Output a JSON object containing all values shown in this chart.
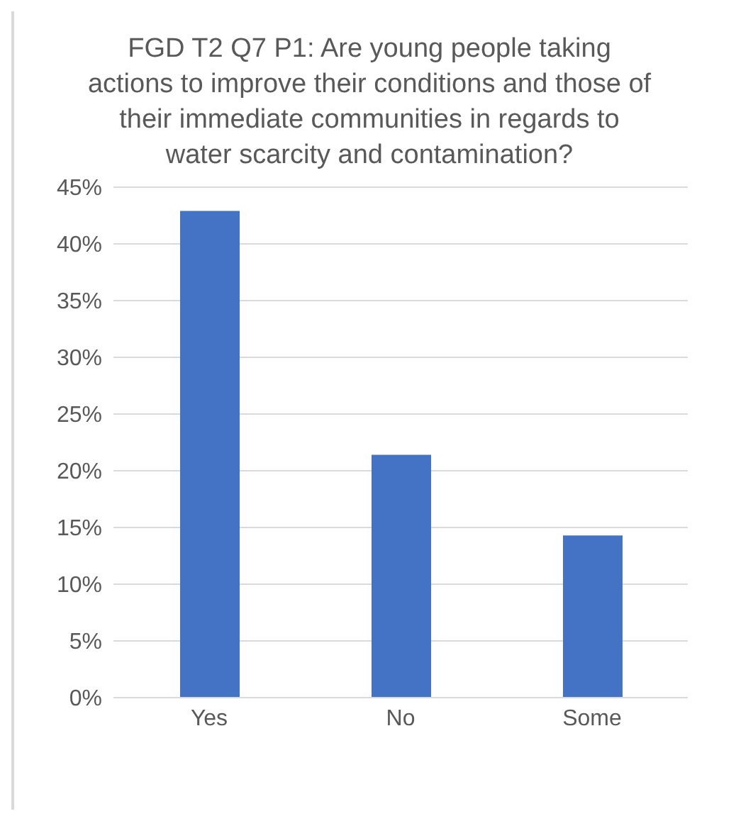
{
  "chart_data": {
    "type": "bar",
    "title": "FGD T2 Q7 P1: Are young people taking actions to improve their conditions and those of their immediate communities in regards to water scarcity and contamination?",
    "categories": [
      "Yes",
      "No",
      "Some"
    ],
    "values": [
      42.9,
      21.4,
      14.3
    ],
    "color": "#4472c4",
    "ylim": [
      0,
      45
    ],
    "yticks": [
      {
        "value": 0,
        "label": "0%"
      },
      {
        "value": 5,
        "label": "5%"
      },
      {
        "value": 10,
        "label": "10%"
      },
      {
        "value": 15,
        "label": "15%"
      },
      {
        "value": 20,
        "label": "20%"
      },
      {
        "value": 25,
        "label": "25%"
      },
      {
        "value": 30,
        "label": "30%"
      },
      {
        "value": 35,
        "label": "35%"
      },
      {
        "value": 40,
        "label": "40%"
      },
      {
        "value": 45,
        "label": "45%"
      }
    ],
    "grid": "y"
  }
}
